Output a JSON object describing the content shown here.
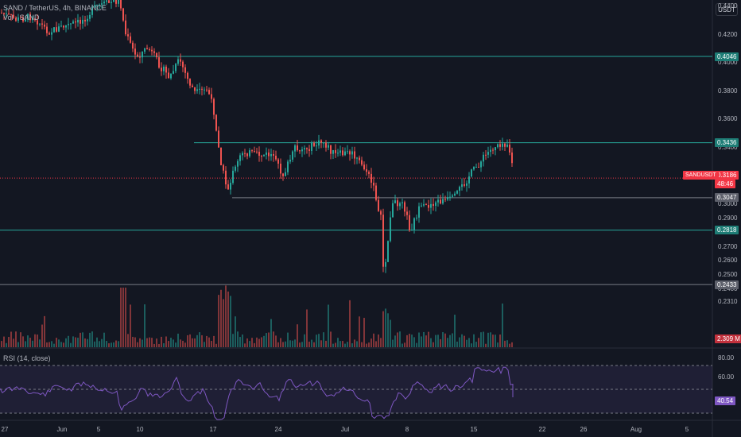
{
  "header": {
    "title": "SAND / TetherUS, 4h, BINANCE",
    "volume_label": "Vol · SAND",
    "currency": "USDT"
  },
  "price_axis": {
    "ticks": [
      "0.4400",
      "0.4200",
      "0.4000",
      "0.3800",
      "0.3600",
      "0.3400",
      "0.3000",
      "0.2900",
      "0.2700",
      "0.2600",
      "0.2500",
      "0.2400",
      "0.2310"
    ]
  },
  "levels": [
    {
      "label": "0.4046",
      "price": 0.4046,
      "color": "#26a69a"
    },
    {
      "label": "0.3436",
      "price": 0.3436,
      "color": "#26a69a"
    },
    {
      "label": "0.3047",
      "price": 0.3047,
      "color": "#787b86"
    },
    {
      "label": "0.2818",
      "price": 0.2818,
      "color": "#26a69a"
    },
    {
      "label": "0.2433",
      "price": 0.2433,
      "color": "#787b86"
    }
  ],
  "current_price": {
    "symbol": "SANDUSDT",
    "price": "0.3186",
    "countdown": "48:46",
    "color": "#f23645"
  },
  "volume_value": "2.309 M",
  "rsi": {
    "label": "RSI (14, close)",
    "value": "40.54",
    "ticks": [
      "80.00",
      "60.00"
    ],
    "line_color": "#7e57c2"
  },
  "time_axis": [
    "27",
    "Jun",
    "5",
    "10",
    "17",
    "24",
    "Jul",
    "8",
    "15",
    "22",
    "26",
    "Aug",
    "5"
  ]
}
